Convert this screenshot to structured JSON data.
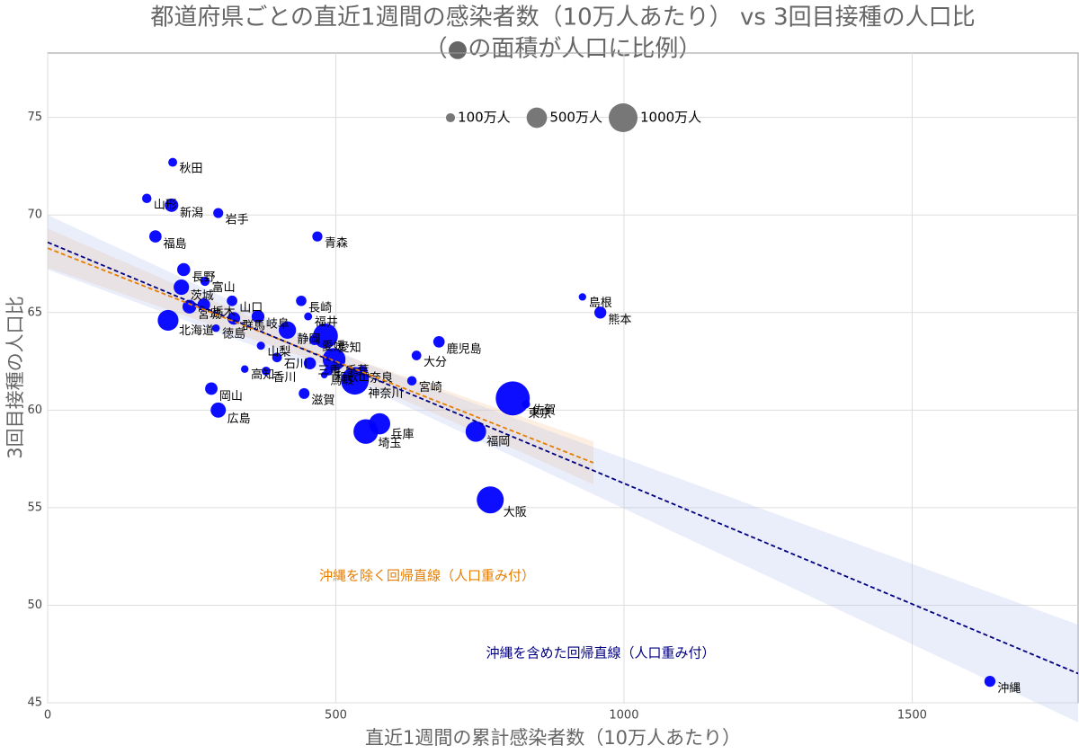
{
  "chart_data": {
    "type": "scatter",
    "title": "都道府県ごとの直近1週間の感染者数（10万人あたり） vs 3回目接種の人口比",
    "subtitle": "（●の面積が人口に比例）",
    "x_label": "直近1週間の累計感染者数（10万人あたり）",
    "y_label": "3回目接種の人口比",
    "color": "#0000ff",
    "labels": [
      "秋田",
      "山形",
      "新潟",
      "岩手",
      "福島",
      "青森",
      "長野",
      "富山",
      "茨城",
      "宮城",
      "栃木",
      "山口",
      "長崎",
      "北海道",
      "群馬",
      "徳島",
      "岐阜",
      "福井",
      "静岡",
      "愛知",
      "愛媛",
      "山梨",
      "石川",
      "三重",
      "千葉",
      "和歌山",
      "鳥取",
      "奈良",
      "神奈川",
      "高知",
      "香川",
      "宮崎",
      "大分",
      "鹿児島",
      "島根",
      "熊本",
      "佐賀",
      "東京",
      "岡山",
      "広島",
      "滋賀",
      "兵庫",
      "埼玉",
      "福岡",
      "大阪",
      "沖縄"
    ],
    "x": [
      217,
      172,
      215,
      296,
      187,
      468,
      236,
      273,
      232,
      246,
      271,
      320,
      440,
      209,
      323,
      292,
      365,
      452,
      416,
      482,
      463,
      370,
      398,
      455,
      497,
      487,
      480,
      546,
      533,
      342,
      379,
      632,
      640,
      679,
      928,
      959,
      830,
      807,
      284,
      296,
      445,
      576,
      552,
      743,
      768,
      1635
    ],
    "values": [
      72.7,
      70.85,
      70.5,
      70.1,
      68.9,
      68.9,
      67.2,
      66.6,
      66.3,
      65.3,
      65.4,
      65.6,
      65.6,
      64.6,
      64.7,
      64.2,
      64.8,
      64.8,
      64.1,
      63.8,
      63.6,
      63.3,
      62.7,
      62.4,
      62.6,
      62.0,
      61.8,
      62.0,
      61.5,
      62.1,
      62.0,
      61.5,
      62.8,
      63.5,
      65.8,
      65.0,
      60.3,
      60.6,
      61.1,
      60.0,
      60.85,
      59.3,
      58.9,
      58.9,
      55.4,
      46.1
    ],
    "sizes": [
      96,
      107,
      220,
      121,
      183,
      124,
      205,
      104,
      287,
      230,
      193,
      134,
      131,
      522,
      194,
      72,
      198,
      77,
      363,
      750,
      133,
      81,
      113,
      177,
      628,
      92,
      55,
      132,
      920,
      69,
      95,
      107,
      112,
      159,
      67,
      174,
      81,
      1400,
      188,
      280,
      141,
      547,
      734,
      510,
      880,
      147
    ],
    "size_legend": {
      "sizes": [
        100,
        500,
        1000
      ],
      "labels": [
        "100万人",
        "500万人",
        "1000万人"
      ],
      "color": "#777777"
    },
    "regression": [
      {
        "name": "沖縄を除く回帰直線（人口重み付）",
        "color": "#e67e00",
        "band_color": "#f5c99a",
        "x": [
          0,
          475,
          947
        ],
        "y": [
          68.3,
          62.78,
          57.3
        ],
        "lower": [
          67.3,
          62.4,
          56.2
        ],
        "upper": [
          69.3,
          63.2,
          58.4
        ]
      },
      {
        "name": "沖縄を含めた回帰直線（人口重み付）",
        "color": "#000080",
        "band_color": "#b8c4f0",
        "x": [
          0,
          550,
          1788
        ],
        "y": [
          68.6,
          61.81,
          46.5
        ],
        "lower": [
          67.2,
          61.2,
          44.0
        ],
        "upper": [
          70.0,
          62.4,
          49.0
        ]
      }
    ],
    "xlim": [
      0,
      1788
    ],
    "ylim": [
      45,
      78.3
    ],
    "xticks": [
      0,
      500,
      1000,
      1500
    ],
    "yticks": [
      45,
      50,
      55,
      60,
      65,
      70,
      75
    ],
    "grid": true
  }
}
